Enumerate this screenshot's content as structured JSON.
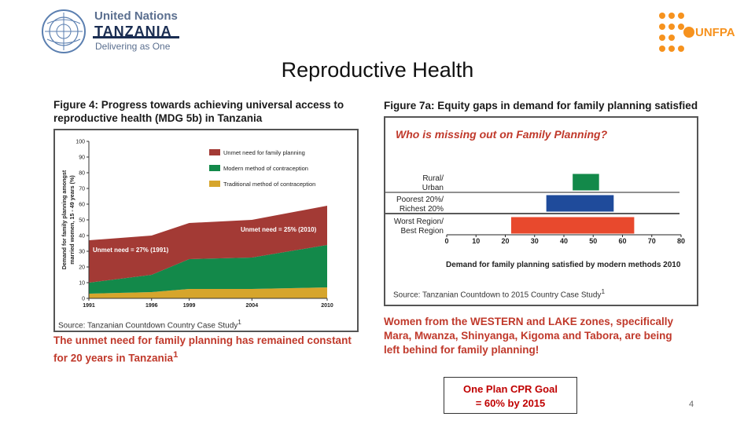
{
  "header": {
    "un_name": "United Nations",
    "un_country": "TANZANIA",
    "un_tagline": "Delivering as One",
    "unfpa_label": "UNFPA",
    "title": "Reproductive Health"
  },
  "colors": {
    "unmet": "#a33a35",
    "modern": "#13894a",
    "traditional": "#d6a52c",
    "bar_rural_urban": "#13894a",
    "bar_poorest_richest": "#1f4b9b",
    "bar_worst_best": "#e8492d",
    "caption_red": "#c0392b",
    "unfpa_orange": "#f6921e"
  },
  "figure4": {
    "title_line1": "Figure 4:  Progress towards achieving universal access to",
    "title_line2": "reproductive health (MDG 5b) in Tanzania",
    "source": "Source: Tanzanian Countdown Country Case Study",
    "source_sup": "1",
    "caption_line1": "The unmet need for family planning has remained constant",
    "caption_line2": "for 20 years in Tanzania",
    "caption_sup": "1"
  },
  "figure7a": {
    "title": "Figure 7a: Equity gaps in demand for family planning satisfied",
    "source": "Source: Tanzanian Countdown to 2015 Country Case Study",
    "source_sup": "1",
    "caption_line1": "Women from the WESTERN and LAKE zones, specifically",
    "caption_line2": "Mara, Mwanza, Shinyanga, Kigoma and Tabora, are being",
    "caption_line3": "left behind for family planning!"
  },
  "chart_data": [
    {
      "type": "area",
      "stacked": true,
      "x": [
        1991,
        1996,
        1999,
        2004,
        2010
      ],
      "xticks": [
        "1991",
        "1996",
        "1999",
        "2004",
        "2010"
      ],
      "ylabel": "Demand for family planning amongst married women, 15 - 49 years (%)",
      "ylim": [
        0,
        100
      ],
      "yticks": [
        "0",
        "10",
        "20",
        "30",
        "40",
        "50",
        "60",
        "70",
        "80",
        "90",
        "100"
      ],
      "series": [
        {
          "name": "Traditional method of contraception",
          "values": [
            3,
            4,
            6,
            6,
            7
          ]
        },
        {
          "name": "Modern method of contraception",
          "values": [
            7,
            11,
            19,
            20,
            27
          ]
        },
        {
          "name": "Unmet need for family planning",
          "values": [
            27,
            25,
            23,
            24,
            25
          ]
        }
      ],
      "annotations": [
        "Unmet need = 27% (1991)",
        "Unmet need = 25% (2010)"
      ],
      "legend": "top-right",
      "grid": false
    },
    {
      "type": "bar",
      "orientation": "horizontal",
      "title": "Who is missing out on Family Planning?",
      "xlabel": "Demand for family planning satisfied by modern methods 2010",
      "xlim": [
        0,
        80
      ],
      "xticks": [
        "0",
        "10",
        "20",
        "30",
        "40",
        "50",
        "60",
        "70",
        "80"
      ],
      "rows": [
        {
          "label_line1": "Rural/",
          "label_line2": "Urban",
          "start": 43,
          "end": 52
        },
        {
          "label_line1": "Poorest 20%/",
          "label_line2": "Richest 20%",
          "start": 34,
          "end": 57
        },
        {
          "label_line1": "Worst Region/",
          "label_line2": "Best Region",
          "start": 22,
          "end": 64
        }
      ],
      "grid": false
    }
  ]
}
